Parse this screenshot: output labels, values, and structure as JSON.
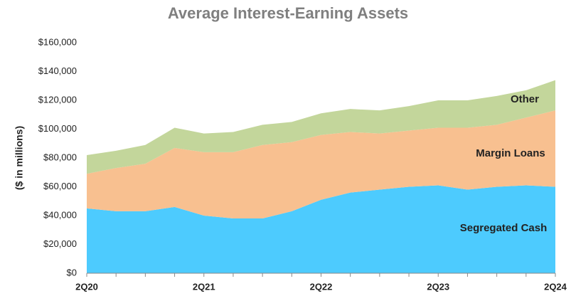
{
  "chart_data": {
    "type": "stacked_area",
    "title": "Average Interest-Earning Assets",
    "y_label": "($ in millions)",
    "categories": [
      "2Q20",
      null,
      null,
      null,
      "2Q21",
      null,
      null,
      null,
      "2Q22",
      null,
      null,
      null,
      "2Q23",
      null,
      null,
      null,
      "2Q24"
    ],
    "series": [
      {
        "name": "Segregated Cash",
        "color": "#4dcbfe",
        "values": [
          45000,
          43000,
          43000,
          46000,
          40000,
          38000,
          38000,
          43000,
          51000,
          56000,
          58000,
          60000,
          61000,
          58000,
          60000,
          61000,
          60000
        ]
      },
      {
        "name": "Margin Loans",
        "color": "#f8c090",
        "values": [
          24000,
          30000,
          33000,
          41000,
          44000,
          46000,
          51000,
          48000,
          45000,
          42000,
          39000,
          39000,
          40000,
          43000,
          43000,
          47000,
          53000
        ]
      },
      {
        "name": "Other",
        "color": "#c3d69b",
        "values": [
          13000,
          12000,
          13000,
          14000,
          13000,
          14000,
          14000,
          14000,
          15000,
          16000,
          16000,
          17000,
          19000,
          19000,
          20000,
          19000,
          21000
        ]
      }
    ],
    "ylim": [
      0,
      160000
    ],
    "yticks": [
      {
        "value": 0,
        "label": "$0"
      },
      {
        "value": 20000,
        "label": "$20,000"
      },
      {
        "value": 40000,
        "label": "$40,000"
      },
      {
        "value": 60000,
        "label": "$60,000"
      },
      {
        "value": 80000,
        "label": "$80,000"
      },
      {
        "value": 100000,
        "label": "$100,000"
      },
      {
        "value": 120000,
        "label": "$120,000"
      },
      {
        "value": 140000,
        "label": "$140,000"
      },
      {
        "value": 160000,
        "label": "$160,000"
      }
    ],
    "grid": false,
    "legend": "inside"
  }
}
